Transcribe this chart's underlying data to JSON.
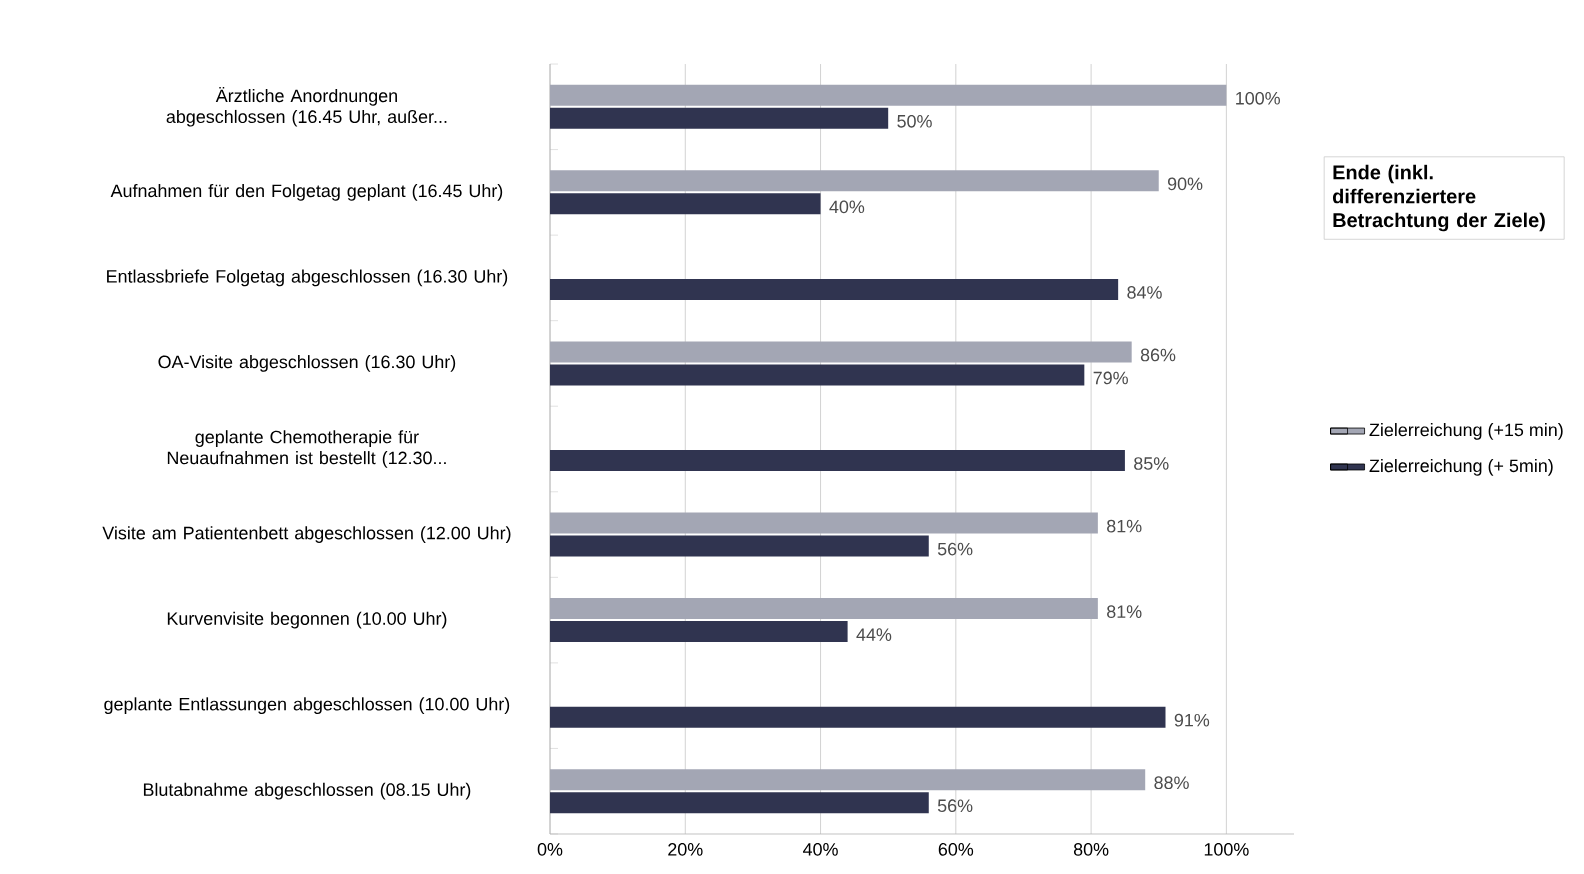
{
  "chart_data": {
    "type": "bar",
    "orientation": "horizontal",
    "title": "Ende (inkl. differenziertere Betrachtung der Ziele)",
    "categories": [
      "Ärztliche Anordnungen abgeschlossen (16.45 Uhr, außer...",
      "Aufnahmen für den Folgetag geplant (16.45 Uhr)",
      "Entlassbriefe Folgetag abgeschlossen (16.30 Uhr)",
      "OA-Visite abgeschlossen (16.30 Uhr)",
      "geplante Chemotherapie für Neuaufnahmen ist bestellt (12.30...",
      "Visite am Patientenbett abgeschlossen (12.00 Uhr)",
      "Kurvenvisite begonnen (10.00 Uhr)",
      "geplante Entlassungen abgeschlossen (10.00 Uhr)",
      "Blutabnahme abgeschlossen (08.15 Uhr)"
    ],
    "series": [
      {
        "name": "Zielerreichung (+15 min)",
        "color": "#a3a6b4",
        "values": [
          100,
          90,
          null,
          86,
          null,
          81,
          81,
          null,
          88
        ],
        "value_labels": [
          "100%",
          "90%",
          null,
          "86%",
          null,
          "81%",
          "81%",
          null,
          "88%"
        ]
      },
      {
        "name": "Zielerreichung (+ 5min)",
        "color": "#303450",
        "values": [
          50,
          40,
          84,
          79,
          85,
          56,
          44,
          91,
          56
        ],
        "value_labels": [
          "50%",
          "40%",
          "84%",
          "79%",
          "85%",
          "56%",
          "44%",
          "91%",
          "56%"
        ]
      }
    ],
    "xlim": [
      0,
      110
    ],
    "xticks": [
      {
        "value": 0,
        "label": "0%"
      },
      {
        "value": 20,
        "label": "20%"
      },
      {
        "value": 40,
        "label": "40%"
      },
      {
        "value": 60,
        "label": "60%"
      },
      {
        "value": 80,
        "label": "80%"
      },
      {
        "value": 100,
        "label": "100%"
      }
    ],
    "grid": "x",
    "legend": "right"
  }
}
